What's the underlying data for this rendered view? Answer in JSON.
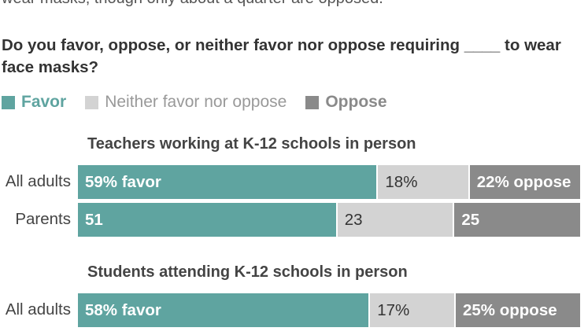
{
  "intro_text": "wear masks, though only about a quarter are opposed.",
  "question": "Do you favor, oppose, or neither favor nor oppose requiring ____ to wear face masks?",
  "legend": [
    {
      "label": "Favor",
      "color": "#5fa4a0",
      "bold": true
    },
    {
      "label": "Neither favor nor oppose",
      "color": "#d3d3d3",
      "bold": false
    },
    {
      "label": "Oppose",
      "color": "#8a8a8a",
      "bold": true
    }
  ],
  "chart_data": {
    "type": "bar",
    "orientation": "horizontal",
    "stacked": true,
    "series_names": [
      "Favor",
      "Neither favor nor oppose",
      "Oppose"
    ],
    "sections": [
      {
        "title": "Teachers working at K-12 schools in person",
        "rows": [
          {
            "label": "All adults",
            "values": [
              59,
              18,
              22
            ],
            "labels": [
              "59% favor",
              "18%",
              "22% oppose"
            ]
          },
          {
            "label": "Parents",
            "values": [
              51,
              23,
              25
            ],
            "labels": [
              "51",
              "23",
              "25"
            ]
          }
        ]
      },
      {
        "title": "Students attending K-12 schools in person",
        "rows": [
          {
            "label": "All adults",
            "values": [
              58,
              17,
              25
            ],
            "labels": [
              "58% favor",
              "17%",
              "25% oppose"
            ]
          }
        ]
      }
    ]
  }
}
